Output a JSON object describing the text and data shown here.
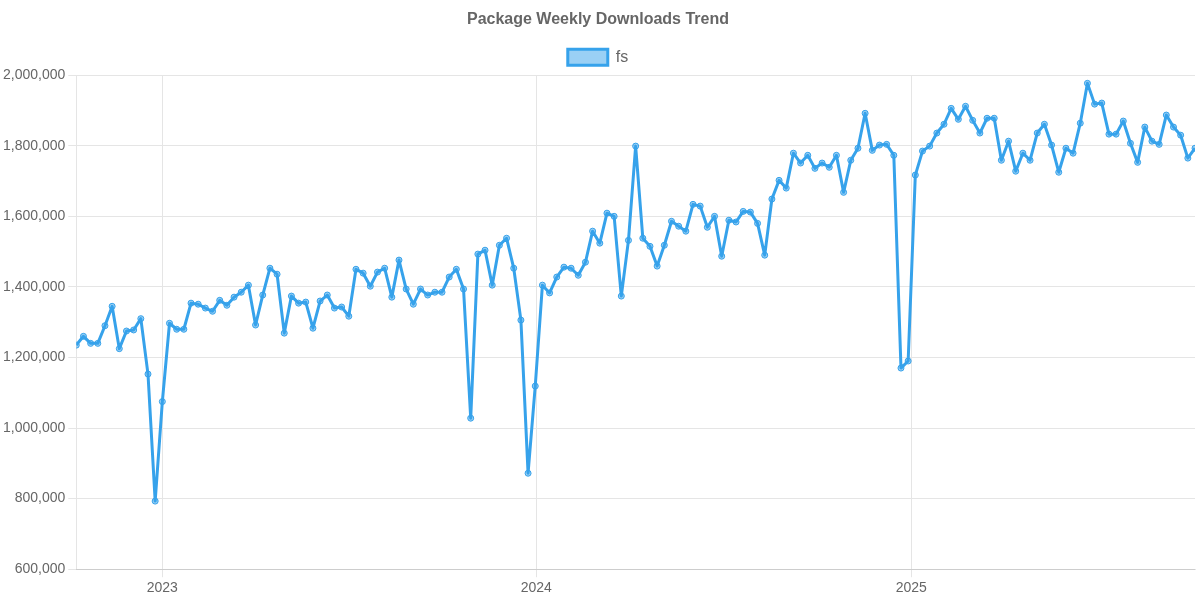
{
  "chart_data": {
    "type": "line",
    "title": "Package Weekly Downloads Trend",
    "legend": "top",
    "grid": true,
    "marker": "circle",
    "line_style": "solid",
    "x": [
      "2022-10-09",
      "2022-10-16",
      "2022-10-23",
      "2022-10-30",
      "2022-11-06",
      "2022-11-13",
      "2022-11-20",
      "2022-11-27",
      "2022-12-04",
      "2022-12-11",
      "2022-12-18",
      "2022-12-25",
      "2023-01-01",
      "2023-01-08",
      "2023-01-15",
      "2023-01-22",
      "2023-01-29",
      "2023-02-05",
      "2023-02-12",
      "2023-02-19",
      "2023-02-26",
      "2023-03-05",
      "2023-03-12",
      "2023-03-19",
      "2023-03-26",
      "2023-04-02",
      "2023-04-09",
      "2023-04-16",
      "2023-04-23",
      "2023-04-30",
      "2023-05-07",
      "2023-05-14",
      "2023-05-21",
      "2023-05-28",
      "2023-06-04",
      "2023-06-11",
      "2023-06-18",
      "2023-06-25",
      "2023-07-02",
      "2023-07-09",
      "2023-07-16",
      "2023-07-23",
      "2023-07-30",
      "2023-08-06",
      "2023-08-13",
      "2023-08-20",
      "2023-08-27",
      "2023-09-03",
      "2023-09-10",
      "2023-09-17",
      "2023-09-24",
      "2023-10-01",
      "2023-10-08",
      "2023-10-15",
      "2023-10-22",
      "2023-10-29",
      "2023-11-05",
      "2023-11-12",
      "2023-11-19",
      "2023-11-26",
      "2023-12-03",
      "2023-12-10",
      "2023-12-17",
      "2023-12-24",
      "2023-12-31",
      "2024-01-07",
      "2024-01-14",
      "2024-01-21",
      "2024-01-28",
      "2024-02-04",
      "2024-02-11",
      "2024-02-18",
      "2024-02-25",
      "2024-03-03",
      "2024-03-10",
      "2024-03-17",
      "2024-03-24",
      "2024-03-31",
      "2024-04-07",
      "2024-04-14",
      "2024-04-21",
      "2024-04-28",
      "2024-05-05",
      "2024-05-12",
      "2024-05-19",
      "2024-05-26",
      "2024-06-02",
      "2024-06-09",
      "2024-06-16",
      "2024-06-23",
      "2024-06-30",
      "2024-07-07",
      "2024-07-14",
      "2024-07-21",
      "2024-07-28",
      "2024-08-04",
      "2024-08-11",
      "2024-08-18",
      "2024-08-25",
      "2024-09-01",
      "2024-09-08",
      "2024-09-15",
      "2024-09-22",
      "2024-09-29",
      "2024-10-06",
      "2024-10-13",
      "2024-10-20",
      "2024-10-27",
      "2024-11-03",
      "2024-11-10",
      "2024-11-17",
      "2024-11-24",
      "2024-12-01",
      "2024-12-08",
      "2024-12-15",
      "2024-12-22",
      "2024-12-29",
      "2025-01-05",
      "2025-01-12",
      "2025-01-19",
      "2025-01-26",
      "2025-02-02",
      "2025-02-09",
      "2025-02-16",
      "2025-02-23",
      "2025-03-02",
      "2025-03-09",
      "2025-03-16",
      "2025-03-23",
      "2025-03-30",
      "2025-04-06",
      "2025-04-13",
      "2025-04-20",
      "2025-04-27",
      "2025-05-04",
      "2025-05-11",
      "2025-05-18",
      "2025-05-25",
      "2025-06-01",
      "2025-06-08",
      "2025-06-15",
      "2025-06-22",
      "2025-06-29",
      "2025-07-06",
      "2025-07-13",
      "2025-07-20",
      "2025-07-27",
      "2025-08-03",
      "2025-08-10",
      "2025-08-17",
      "2025-08-24",
      "2025-08-31",
      "2025-09-07",
      "2025-09-14",
      "2025-09-21",
      "2025-09-28",
      "2025-10-05"
    ],
    "series": [
      {
        "name": "fs",
        "color": "#36a2eb",
        "values": [
          1235000,
          1260000,
          1240000,
          1240000,
          1290000,
          1345000,
          1225000,
          1275000,
          1278000,
          1310000,
          1153000,
          793000,
          1075000,
          1297000,
          1280000,
          1280000,
          1354000,
          1351000,
          1340000,
          1331000,
          1362000,
          1348000,
          1371000,
          1385000,
          1405000,
          1292000,
          1377000,
          1453000,
          1436000,
          1269000,
          1374000,
          1354000,
          1357000,
          1283000,
          1360000,
          1377000,
          1340000,
          1343000,
          1317000,
          1450000,
          1439000,
          1402000,
          1442000,
          1453000,
          1371000,
          1476000,
          1394000,
          1351000,
          1394000,
          1377000,
          1385000,
          1385000,
          1428000,
          1450000,
          1394000,
          1028000,
          1493000,
          1504000,
          1405000,
          1518000,
          1538000,
          1453000,
          1306000,
          872000,
          1119000,
          1405000,
          1383000,
          1428000,
          1456000,
          1453000,
          1433000,
          1470000,
          1558000,
          1524000,
          1609000,
          1600000,
          1374000,
          1532000,
          1799000,
          1538000,
          1515000,
          1459000,
          1518000,
          1586000,
          1572000,
          1558000,
          1634000,
          1629000,
          1569000,
          1600000,
          1487000,
          1589000,
          1584000,
          1614000,
          1612000,
          1580000,
          1490000,
          1649000,
          1702000,
          1680000,
          1779000,
          1751000,
          1773000,
          1736000,
          1751000,
          1739000,
          1773000,
          1668000,
          1759000,
          1793000,
          1892000,
          1787000,
          1802000,
          1804000,
          1773000,
          1170000,
          1190000,
          1717000,
          1785000,
          1799000,
          1836000,
          1861000,
          1906000,
          1875000,
          1912000,
          1872000,
          1836000,
          1878000,
          1878000,
          1759000,
          1813000,
          1728000,
          1779000,
          1759000,
          1836000,
          1861000,
          1802000,
          1725000,
          1793000,
          1779000,
          1864000,
          1977000,
          1918000,
          1921000,
          1833000,
          1833000,
          1870000,
          1807000,
          1753000,
          1853000,
          1813000,
          1804000,
          1887000,
          1853000,
          1830000,
          1765000,
          1793000
        ]
      }
    ],
    "xlim": [
      "2022-10-09",
      "2025-10-05"
    ],
    "xticks": [
      {
        "value": "2023-01-01",
        "label": "2023"
      },
      {
        "value": "2024-01-01",
        "label": "2024"
      },
      {
        "value": "2025-01-01",
        "label": "2025"
      }
    ],
    "ylim": [
      600000,
      2000000
    ],
    "yticks": [
      {
        "value": 600000,
        "label": "600,000"
      },
      {
        "value": 800000,
        "label": "800,000"
      },
      {
        "value": 1000000,
        "label": "1,000,000"
      },
      {
        "value": 1200000,
        "label": "1,200,000"
      },
      {
        "value": 1400000,
        "label": "1,400,000"
      },
      {
        "value": 1600000,
        "label": "1,600,000"
      },
      {
        "value": 1800000,
        "label": "1,800,000"
      },
      {
        "value": 2000000,
        "label": "2,000,000"
      }
    ]
  }
}
